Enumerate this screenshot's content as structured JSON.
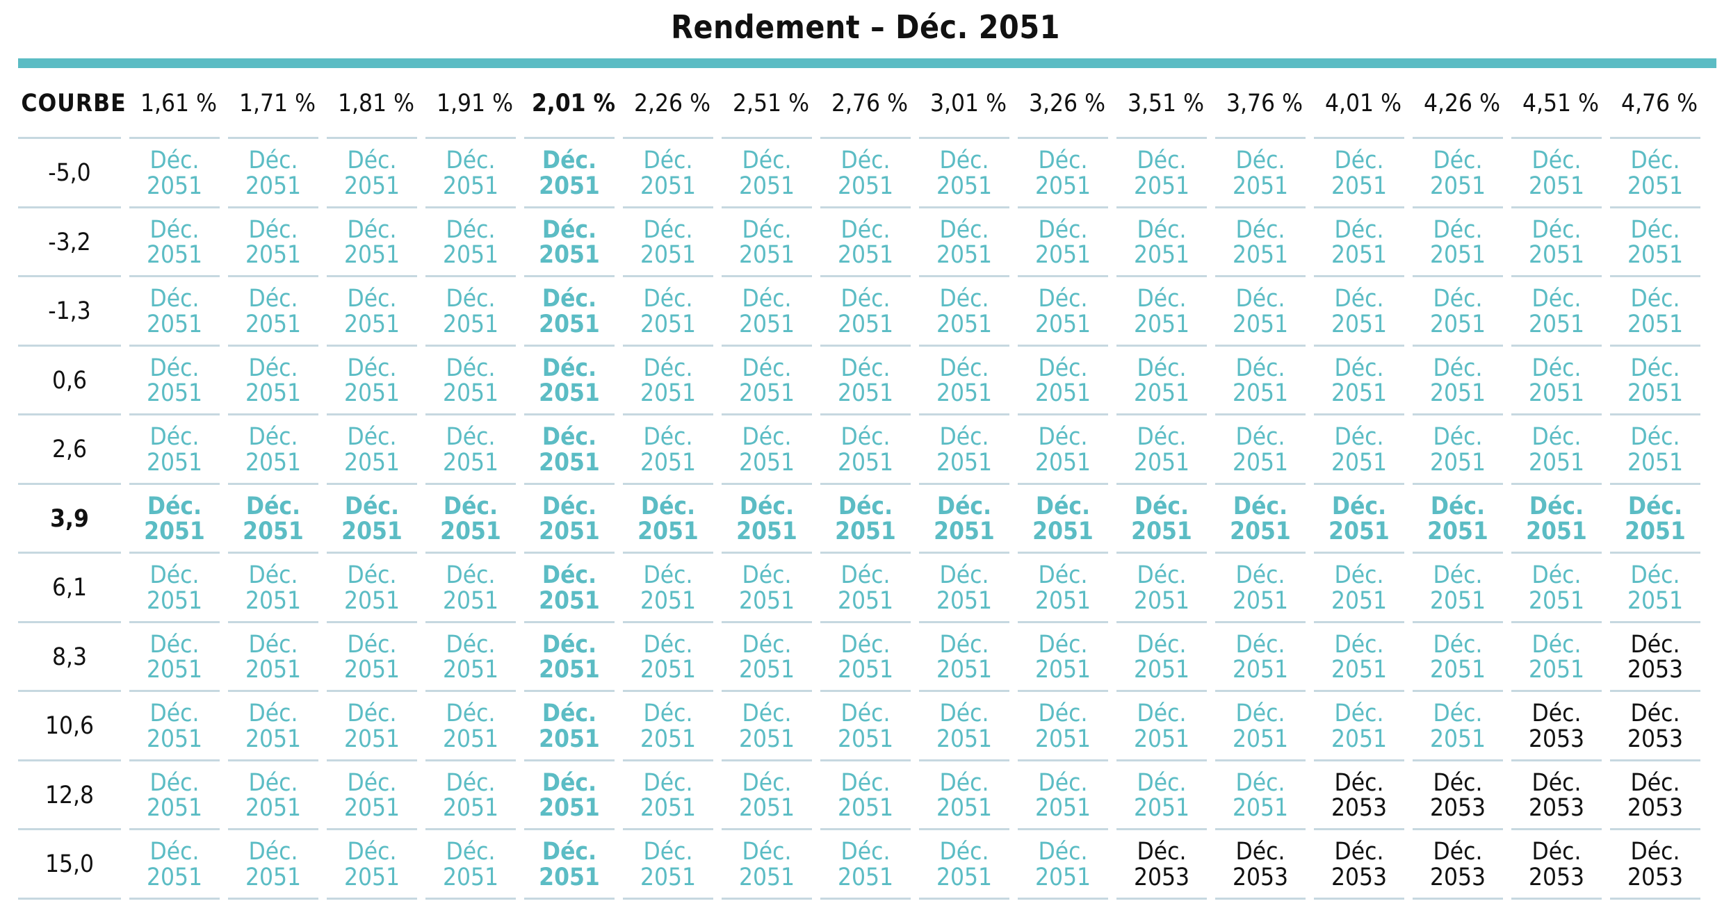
{
  "chart_data": {
    "type": "table",
    "title": "Rendement – Déc. 2051",
    "corner_label": "COURBE",
    "column_headers": [
      "1,61 %",
      "1,71 %",
      "1,81 %",
      "1,91 %",
      "2,01 %",
      "2,26 %",
      "2,51 %",
      "2,76 %",
      "3,01 %",
      "3,26 %",
      "3,51 %",
      "3,76 %",
      "4,01 %",
      "4,26 %",
      "4,51 %",
      "4,76 %"
    ],
    "row_labels": [
      "-5,0",
      "-3,2",
      "-1,3",
      "0,6",
      "2,6",
      "3,9",
      "6,1",
      "8,3",
      "10,6",
      "12,8",
      "15,0"
    ],
    "highlight_column": 4,
    "highlight_row": 5,
    "default_cell": "Déc. 2051",
    "cells": [
      [
        "Déc. 2051",
        "Déc. 2051",
        "Déc. 2051",
        "Déc. 2051",
        "Déc. 2051",
        "Déc. 2051",
        "Déc. 2051",
        "Déc. 2051",
        "Déc. 2051",
        "Déc. 2051",
        "Déc. 2051",
        "Déc. 2051",
        "Déc. 2051",
        "Déc. 2051",
        "Déc. 2051",
        "Déc. 2051"
      ],
      [
        "Déc. 2051",
        "Déc. 2051",
        "Déc. 2051",
        "Déc. 2051",
        "Déc. 2051",
        "Déc. 2051",
        "Déc. 2051",
        "Déc. 2051",
        "Déc. 2051",
        "Déc. 2051",
        "Déc. 2051",
        "Déc. 2051",
        "Déc. 2051",
        "Déc. 2051",
        "Déc. 2051",
        "Déc. 2051"
      ],
      [
        "Déc. 2051",
        "Déc. 2051",
        "Déc. 2051",
        "Déc. 2051",
        "Déc. 2051",
        "Déc. 2051",
        "Déc. 2051",
        "Déc. 2051",
        "Déc. 2051",
        "Déc. 2051",
        "Déc. 2051",
        "Déc. 2051",
        "Déc. 2051",
        "Déc. 2051",
        "Déc. 2051",
        "Déc. 2051"
      ],
      [
        "Déc. 2051",
        "Déc. 2051",
        "Déc. 2051",
        "Déc. 2051",
        "Déc. 2051",
        "Déc. 2051",
        "Déc. 2051",
        "Déc. 2051",
        "Déc. 2051",
        "Déc. 2051",
        "Déc. 2051",
        "Déc. 2051",
        "Déc. 2051",
        "Déc. 2051",
        "Déc. 2051",
        "Déc. 2051"
      ],
      [
        "Déc. 2051",
        "Déc. 2051",
        "Déc. 2051",
        "Déc. 2051",
        "Déc. 2051",
        "Déc. 2051",
        "Déc. 2051",
        "Déc. 2051",
        "Déc. 2051",
        "Déc. 2051",
        "Déc. 2051",
        "Déc. 2051",
        "Déc. 2051",
        "Déc. 2051",
        "Déc. 2051",
        "Déc. 2051"
      ],
      [
        "Déc. 2051",
        "Déc. 2051",
        "Déc. 2051",
        "Déc. 2051",
        "Déc. 2051",
        "Déc. 2051",
        "Déc. 2051",
        "Déc. 2051",
        "Déc. 2051",
        "Déc. 2051",
        "Déc. 2051",
        "Déc. 2051",
        "Déc. 2051",
        "Déc. 2051",
        "Déc. 2051",
        "Déc. 2051"
      ],
      [
        "Déc. 2051",
        "Déc. 2051",
        "Déc. 2051",
        "Déc. 2051",
        "Déc. 2051",
        "Déc. 2051",
        "Déc. 2051",
        "Déc. 2051",
        "Déc. 2051",
        "Déc. 2051",
        "Déc. 2051",
        "Déc. 2051",
        "Déc. 2051",
        "Déc. 2051",
        "Déc. 2051",
        "Déc. 2051"
      ],
      [
        "Déc. 2051",
        "Déc. 2051",
        "Déc. 2051",
        "Déc. 2051",
        "Déc. 2051",
        "Déc. 2051",
        "Déc. 2051",
        "Déc. 2051",
        "Déc. 2051",
        "Déc. 2051",
        "Déc. 2051",
        "Déc. 2051",
        "Déc. 2051",
        "Déc. 2051",
        "Déc. 2051",
        "Déc. 2053"
      ],
      [
        "Déc. 2051",
        "Déc. 2051",
        "Déc. 2051",
        "Déc. 2051",
        "Déc. 2051",
        "Déc. 2051",
        "Déc. 2051",
        "Déc. 2051",
        "Déc. 2051",
        "Déc. 2051",
        "Déc. 2051",
        "Déc. 2051",
        "Déc. 2051",
        "Déc. 2051",
        "Déc. 2053",
        "Déc. 2053"
      ],
      [
        "Déc. 2051",
        "Déc. 2051",
        "Déc. 2051",
        "Déc. 2051",
        "Déc. 2051",
        "Déc. 2051",
        "Déc. 2051",
        "Déc. 2051",
        "Déc. 2051",
        "Déc. 2051",
        "Déc. 2051",
        "Déc. 2051",
        "Déc. 2053",
        "Déc. 2053",
        "Déc. 2053",
        "Déc. 2053"
      ],
      [
        "Déc. 2051",
        "Déc. 2051",
        "Déc. 2051",
        "Déc. 2051",
        "Déc. 2051",
        "Déc. 2051",
        "Déc. 2051",
        "Déc. 2051",
        "Déc. 2051",
        "Déc. 2051",
        "Déc. 2053",
        "Déc. 2053",
        "Déc. 2053",
        "Déc. 2053",
        "Déc. 2053",
        "Déc. 2053"
      ]
    ]
  },
  "colors": {
    "accent": "#5bbcc4",
    "rule": "#c6d8e0",
    "text_dark": "#111111"
  }
}
